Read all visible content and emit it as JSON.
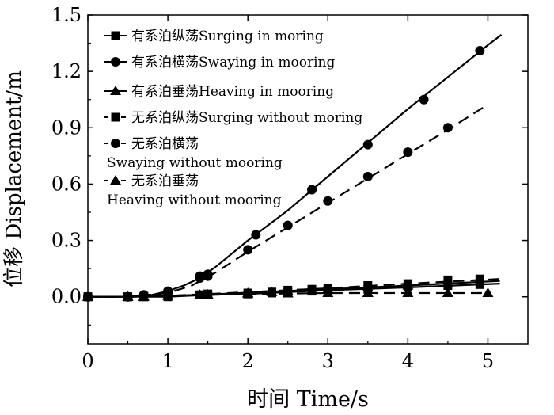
{
  "chart_data": {
    "type": "line",
    "xlabel": "时间 Time/s",
    "ylabel": "位移 Displacement/m",
    "xlim": [
      0,
      5.5
    ],
    "ylim": [
      -0.25,
      1.5
    ],
    "xticks": [
      "0",
      "1",
      "2",
      "3",
      "4",
      "5"
    ],
    "yticks": [
      "0.0",
      "0.3",
      "0.6",
      "0.9",
      "1.2",
      "1.5"
    ],
    "grid": false,
    "legend_position": "top-left",
    "series": [
      {
        "name": "有系泊纵荡Surging in moring",
        "legend_lines": [
          "有系泊纵荡Surging in moring"
        ],
        "marker": "square",
        "dash": "solid",
        "line_x": [
          0,
          0.5,
          1.0,
          1.5,
          2.0,
          3.0,
          4.0,
          5.15
        ],
        "line_y": [
          0,
          0,
          0.0,
          0.01,
          0.015,
          0.035,
          0.05,
          0.07
        ],
        "x": [
          0,
          0.5,
          0.7,
          1.0,
          1.4,
          1.5,
          2.0,
          2.3,
          2.5,
          2.8,
          3.0,
          3.5,
          4.0,
          4.5,
          4.9
        ],
        "y": [
          0,
          0,
          0,
          0.0,
          0.01,
          0.01,
          0.015,
          0.02,
          0.025,
          0.03,
          0.035,
          0.04,
          0.05,
          0.06,
          0.065
        ]
      },
      {
        "name": "有系泊横荡Swaying in mooring",
        "legend_lines": [
          "有系泊横荡Swaying in mooring"
        ],
        "marker": "circle",
        "dash": "solid",
        "line_x": [
          0,
          0.5,
          0.8,
          1.0,
          1.2,
          1.4,
          1.6,
          2.0,
          2.5,
          3.0,
          3.5,
          4.0,
          4.5,
          5.0,
          5.17
        ],
        "line_y": [
          0,
          0,
          0.01,
          0.03,
          0.06,
          0.1,
          0.16,
          0.3,
          0.46,
          0.64,
          0.82,
          1.0,
          1.17,
          1.34,
          1.395
        ],
        "x": [
          0,
          0.5,
          0.7,
          1.0,
          1.4,
          1.5,
          2.1,
          2.8,
          3.5,
          4.2,
          4.9
        ],
        "y": [
          0,
          0,
          0.01,
          0.03,
          0.11,
          0.12,
          0.33,
          0.57,
          0.81,
          1.05,
          1.31
        ]
      },
      {
        "name": "有系泊垂荡Heaving in mooring",
        "legend_lines": [
          "有系泊垂荡Heaving in mooring"
        ],
        "marker": "triangle",
        "dash": "solid",
        "line_x": [
          0,
          0.5,
          1.0,
          1.5,
          2.0,
          3.0,
          4.0,
          5.15
        ],
        "line_y": [
          0,
          0,
          0.005,
          0.012,
          0.022,
          0.04,
          0.06,
          0.085
        ],
        "x": [
          0,
          0.5,
          0.7,
          1.0,
          1.4,
          1.5,
          2.0,
          2.3,
          2.5,
          2.8,
          3.0,
          3.5,
          4.0,
          4.5,
          4.9
        ],
        "y": [
          0,
          0,
          0,
          0.005,
          0.01,
          0.012,
          0.02,
          0.025,
          0.03,
          0.035,
          0.04,
          0.05,
          0.06,
          0.075,
          0.085
        ]
      },
      {
        "name": "无系泊纵荡Surging without moring",
        "legend_lines": [
          "无系泊纵荡Surging without moring"
        ],
        "marker": "square",
        "dash": "dashed",
        "line_x": [
          0,
          0.5,
          1.0,
          1.5,
          2.0,
          3.0,
          4.0,
          5.15
        ],
        "line_y": [
          0,
          0,
          0.005,
          0.015,
          0.025,
          0.045,
          0.07,
          0.095
        ],
        "x": [
          0,
          0.5,
          0.7,
          1.0,
          1.4,
          1.5,
          2.0,
          2.3,
          2.5,
          2.8,
          3.0,
          3.5,
          4.0,
          4.5,
          4.9
        ],
        "y": [
          0,
          0,
          0,
          0.005,
          0.01,
          0.015,
          0.02,
          0.025,
          0.035,
          0.04,
          0.045,
          0.06,
          0.07,
          0.09,
          0.095
        ]
      },
      {
        "name": "无系泊横荡 Swaying without mooring",
        "legend_lines": [
          "无系泊横荡",
          "Swaying without mooring"
        ],
        "marker": "circle",
        "dash": "dashed",
        "line_x": [
          0,
          0.5,
          1.0,
          1.3,
          1.6,
          2.0,
          2.5,
          3.0,
          3.5,
          4.0,
          4.5,
          4.95
        ],
        "line_y": [
          0,
          0,
          0.02,
          0.06,
          0.13,
          0.24,
          0.37,
          0.5,
          0.63,
          0.76,
          0.89,
          1.01
        ],
        "x": [
          0,
          0.5,
          0.7,
          1.0,
          1.4,
          1.5,
          2.0,
          2.5,
          3.0,
          3.5,
          4.0,
          4.5
        ],
        "y": [
          0,
          0,
          0.01,
          0.02,
          0.1,
          0.11,
          0.25,
          0.38,
          0.51,
          0.64,
          0.77,
          0.9
        ]
      },
      {
        "name": "无系泊垂荡 Heaving without mooring",
        "legend_lines": [
          "无系泊垂荡",
          "Heaving without mooring"
        ],
        "marker": "triangle",
        "dash": "dashed",
        "line_x": [
          0,
          0.5,
          1.0,
          1.5,
          2.0,
          3.0,
          4.0,
          5.0
        ],
        "line_y": [
          0,
          0,
          0.005,
          0.01,
          0.015,
          0.02,
          0.02,
          0.02
        ],
        "x": [
          0,
          0.5,
          0.7,
          1.0,
          1.4,
          1.5,
          2.0,
          2.5,
          3.0,
          3.5,
          4.0,
          4.5,
          5.0
        ],
        "y": [
          0,
          0,
          0,
          0.005,
          0.01,
          0.01,
          0.015,
          0.018,
          0.02,
          0.02,
          0.02,
          0.02,
          0.02
        ]
      }
    ]
  }
}
